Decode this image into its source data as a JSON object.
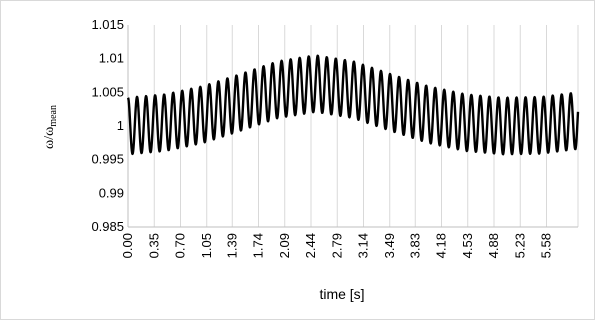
{
  "chart_data": {
    "type": "line",
    "xlabel": "time [s]",
    "ylabel": "ω/ω",
    "ylabel_subscript": "mean",
    "ylim": [
      0.985,
      1.015
    ],
    "yticks": [
      0.985,
      0.99,
      0.995,
      1,
      1.005,
      1.01,
      1.015
    ],
    "ytick_labels": [
      "0.985",
      "0.99",
      "0.995",
      "1",
      "1.005",
      "1.01",
      "1.015"
    ],
    "xlim": [
      0,
      6.0
    ],
    "xticks": [
      0.0,
      0.35,
      0.7,
      1.05,
      1.39,
      1.74,
      2.09,
      2.44,
      2.79,
      3.14,
      3.49,
      3.83,
      4.18,
      4.53,
      4.88,
      5.23,
      5.58
    ],
    "xtick_labels": [
      "0.00",
      "0.35",
      "0.70",
      "1.05",
      "1.39",
      "1.74",
      "2.09",
      "2.44",
      "2.79",
      "3.14",
      "3.49",
      "3.83",
      "4.18",
      "4.53",
      "4.88",
      "5.23",
      "5.58"
    ],
    "grid": "vertical",
    "series": [
      {
        "color": "#000000",
        "oscillation_frequency_hz": 8.3,
        "oscillation_amplitude": 0.0042,
        "envelope": [
          [
            0.0,
            1.0
          ],
          [
            0.5,
            1.0005
          ],
          [
            1.0,
            1.0017
          ],
          [
            1.5,
            1.0035
          ],
          [
            2.0,
            1.0054
          ],
          [
            2.5,
            1.0063
          ],
          [
            3.0,
            1.0054
          ],
          [
            3.5,
            1.0035
          ],
          [
            4.0,
            1.0017
          ],
          [
            4.5,
            1.0005
          ],
          [
            5.0,
            1.0
          ],
          [
            5.5,
            1.0001
          ],
          [
            6.0,
            1.0008
          ]
        ]
      }
    ]
  }
}
